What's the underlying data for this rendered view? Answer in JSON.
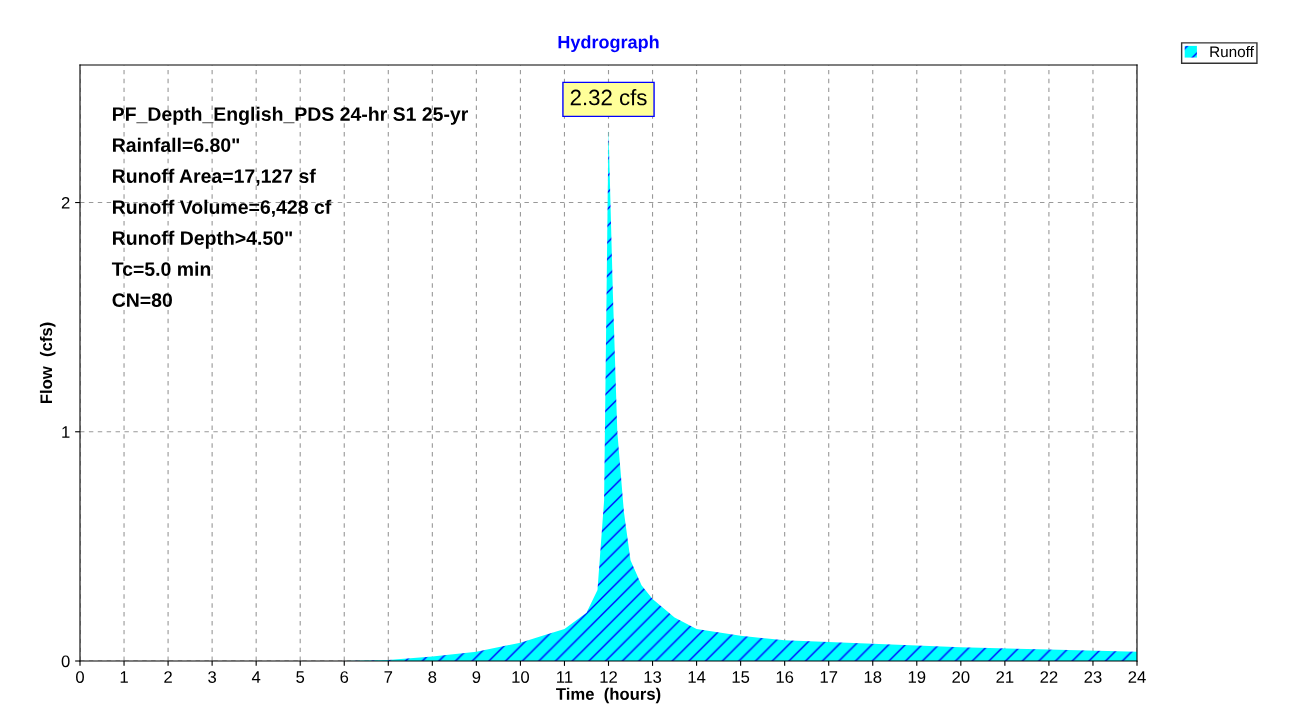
{
  "chart_data": {
    "type": "area",
    "title": "Hydrograph",
    "xlabel": "Time  (hours)",
    "ylabel": "Flow  (cfs)",
    "x": [
      0,
      1,
      2,
      3,
      4,
      5,
      6,
      7,
      8,
      9,
      10,
      10.5,
      11,
      11.5,
      11.75,
      11.9,
      12.0,
      12.1,
      12.2,
      12.35,
      12.5,
      12.75,
      13,
      13.5,
      14,
      15,
      16,
      18,
      20,
      22,
      24
    ],
    "series": [
      {
        "name": "Runoff",
        "color": "#00ffff",
        "values": [
          0,
          0,
          0,
          0,
          0,
          0,
          0,
          0.004,
          0.02,
          0.04,
          0.08,
          0.11,
          0.14,
          0.21,
          0.31,
          0.7,
          2.32,
          1.6,
          1.0,
          0.65,
          0.44,
          0.33,
          0.27,
          0.19,
          0.14,
          0.11,
          0.09,
          0.075,
          0.06,
          0.05,
          0.04
        ]
      }
    ],
    "xlim": [
      0,
      24
    ],
    "ylim": [
      0,
      2.6
    ],
    "xticks": [
      0,
      1,
      2,
      3,
      4,
      5,
      6,
      7,
      8,
      9,
      10,
      11,
      12,
      13,
      14,
      15,
      16,
      17,
      18,
      19,
      20,
      21,
      22,
      23,
      24
    ],
    "yticks": [
      0,
      1,
      2
    ],
    "grid": true,
    "legend": "top right",
    "annotations": [
      {
        "text": "2.32 cfs",
        "x": 12.0,
        "y": 2.32
      },
      "PF_Depth_English_PDS 24-hr S1 25-yr",
      "Rainfall=6.80\"",
      "Runoff Area=17,127 sf",
      "Runoff Volume=6,428 cf",
      "Runoff Depth>4.50\"",
      "Tc=5.0 min",
      "CN=80"
    ]
  }
}
